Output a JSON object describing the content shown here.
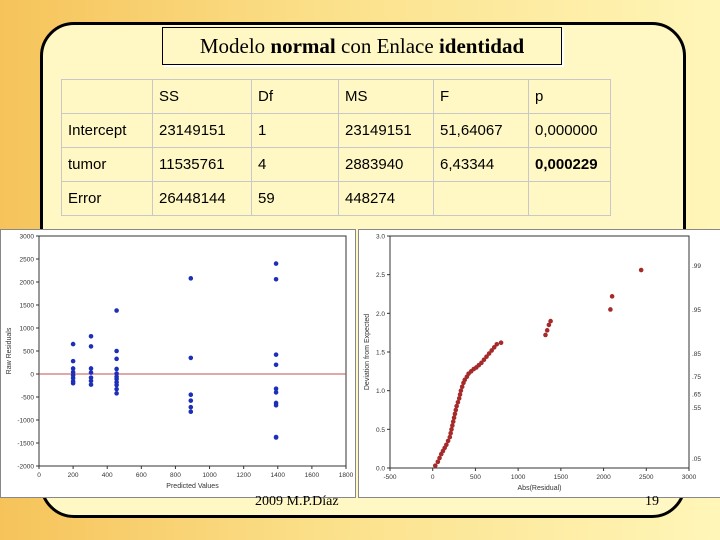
{
  "slide": {
    "title_prefix": "Modelo ",
    "title_bold1": "normal",
    "title_mid": " con Enlace ",
    "title_bold2": "identidad",
    "footer_left": "2009  M.P.Díaz",
    "page_number": "19"
  },
  "anova": {
    "headers": [
      "",
      "SS",
      "Df",
      "MS",
      "F",
      "p"
    ],
    "rows": [
      [
        "Intercept",
        "23149151",
        "1",
        "23149151",
        "51,64067",
        "0,000000"
      ],
      [
        "tumor",
        "11535761",
        "4",
        "2883940",
        "6,43344",
        "0,000229"
      ],
      [
        "Error",
        "26448144",
        "59",
        "448274",
        "",
        ""
      ]
    ]
  },
  "chart_data": [
    {
      "type": "scatter",
      "xlabel": "Predicted Values",
      "ylabel": "Raw Residuals",
      "xlim": [
        0,
        1800
      ],
      "ylim": [
        -2000,
        3000
      ],
      "x_ticks": [
        "0",
        "200",
        "400",
        "600",
        "800",
        "1000",
        "1200",
        "1400",
        "1600",
        "1800"
      ],
      "y_ticks": [
        "-2000",
        "-1500",
        "-1000",
        "-500",
        "0",
        "500",
        "1000",
        "1500",
        "2000",
        "2500",
        "3000"
      ],
      "reference_line_y": 0,
      "point_color": "#1d2fb8",
      "line_color": "#c0504d",
      "points": [
        [
          200,
          650
        ],
        [
          200,
          280
        ],
        [
          200,
          120
        ],
        [
          200,
          40
        ],
        [
          200,
          -30
        ],
        [
          200,
          -90
        ],
        [
          200,
          -160
        ],
        [
          200,
          -200
        ],
        [
          305,
          820
        ],
        [
          305,
          600
        ],
        [
          305,
          120
        ],
        [
          305,
          30
        ],
        [
          305,
          -80
        ],
        [
          305,
          -150
        ],
        [
          305,
          -230
        ],
        [
          455,
          1380
        ],
        [
          455,
          500
        ],
        [
          455,
          330
        ],
        [
          455,
          110
        ],
        [
          455,
          10
        ],
        [
          455,
          -60
        ],
        [
          455,
          -110
        ],
        [
          455,
          -180
        ],
        [
          455,
          -240
        ],
        [
          455,
          -330
        ],
        [
          455,
          -420
        ],
        [
          890,
          2080
        ],
        [
          890,
          350
        ],
        [
          890,
          -450
        ],
        [
          890,
          -580
        ],
        [
          890,
          -720
        ],
        [
          890,
          -820
        ],
        [
          1390,
          2400
        ],
        [
          1390,
          2060
        ],
        [
          1390,
          420
        ],
        [
          1390,
          200
        ],
        [
          1390,
          -320
        ],
        [
          1390,
          -400
        ],
        [
          1390,
          -630
        ],
        [
          1390,
          -680
        ],
        [
          1390,
          -1370
        ],
        [
          1390,
          -1380
        ]
      ]
    },
    {
      "type": "scatter",
      "xlabel": "Abs(Residual)",
      "ylabel": "Deviation from Expected",
      "xlim": [
        -500,
        3000
      ],
      "ylim": [
        0,
        3.0
      ],
      "x_ticks": [
        "-500",
        "0",
        "500",
        "1000",
        "1500",
        "2000",
        "2500",
        "3000"
      ],
      "y_ticks": [
        "3.0",
        "2.5",
        "2.0",
        "1.5",
        "1.0",
        "0.5",
        "0.0"
      ],
      "right_ticks": [
        ".99",
        ".95",
        ".85",
        ".75",
        ".65",
        ".55",
        ".05"
      ],
      "point_color": "#a52a2a",
      "points": [
        [
          30,
          0.03
        ],
        [
          60,
          0.08
        ],
        [
          80,
          0.13
        ],
        [
          100,
          0.18
        ],
        [
          120,
          0.22
        ],
        [
          140,
          0.26
        ],
        [
          160,
          0.3
        ],
        [
          180,
          0.35
        ],
        [
          200,
          0.4
        ],
        [
          210,
          0.45
        ],
        [
          220,
          0.5
        ],
        [
          230,
          0.55
        ],
        [
          240,
          0.6
        ],
        [
          250,
          0.65
        ],
        [
          260,
          0.7
        ],
        [
          270,
          0.75
        ],
        [
          280,
          0.8
        ],
        [
          295,
          0.85
        ],
        [
          310,
          0.9
        ],
        [
          320,
          0.95
        ],
        [
          330,
          1.0
        ],
        [
          345,
          1.05
        ],
        [
          360,
          1.1
        ],
        [
          375,
          1.14
        ],
        [
          400,
          1.18
        ],
        [
          420,
          1.22
        ],
        [
          450,
          1.25
        ],
        [
          480,
          1.28
        ],
        [
          510,
          1.3
        ],
        [
          540,
          1.33
        ],
        [
          570,
          1.36
        ],
        [
          600,
          1.4
        ],
        [
          630,
          1.44
        ],
        [
          660,
          1.48
        ],
        [
          690,
          1.52
        ],
        [
          720,
          1.56
        ],
        [
          750,
          1.6
        ],
        [
          800,
          1.62
        ],
        [
          1320,
          1.72
        ],
        [
          1340,
          1.78
        ],
        [
          1360,
          1.85
        ],
        [
          1380,
          1.9
        ],
        [
          2080,
          2.05
        ],
        [
          2100,
          2.22
        ],
        [
          2440,
          2.56
        ]
      ]
    }
  ]
}
